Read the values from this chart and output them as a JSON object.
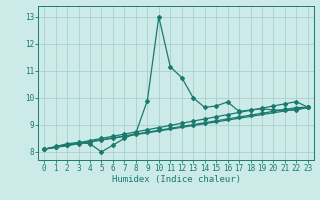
{
  "xlabel": "Humidex (Indice chaleur)",
  "bg_color": "#cceae8",
  "grid_color": "#aacfcc",
  "line_color": "#1a7a6e",
  "x_ticks": [
    0,
    1,
    2,
    3,
    4,
    5,
    6,
    7,
    8,
    9,
    10,
    11,
    12,
    13,
    14,
    15,
    16,
    17,
    18,
    19,
    20,
    21,
    22,
    23
  ],
  "y_ticks": [
    8,
    9,
    10,
    11,
    12,
    13
  ],
  "ylim": [
    7.7,
    13.4
  ],
  "xlim": [
    -0.5,
    23.5
  ],
  "series": [
    {
      "x": [
        0,
        1,
        2,
        3,
        4,
        5,
        6,
        7,
        8,
        9,
        10,
        11,
        12,
        13,
        14,
        15,
        16,
        17,
        18,
        19,
        20,
        21,
        22,
        23
      ],
      "y": [
        8.1,
        8.2,
        8.3,
        8.35,
        8.3,
        8.0,
        8.25,
        8.5,
        8.7,
        9.9,
        13.0,
        11.15,
        10.75,
        10.0,
        9.65,
        9.7,
        9.85,
        9.5,
        9.55,
        9.6,
        9.55,
        9.55,
        9.55,
        9.65
      ],
      "marker": "D",
      "markersize": 2.0,
      "linewidth": 0.9
    },
    {
      "x": [
        0,
        1,
        2,
        3,
        4,
        5,
        6,
        7,
        8,
        9,
        10,
        11,
        12,
        13,
        14,
        15,
        16,
        17,
        18,
        19,
        20,
        21,
        22,
        23
      ],
      "y": [
        8.1,
        8.18,
        8.26,
        8.34,
        8.42,
        8.5,
        8.58,
        8.66,
        8.74,
        8.82,
        8.9,
        8.98,
        9.06,
        9.14,
        9.22,
        9.3,
        9.38,
        9.46,
        9.54,
        9.62,
        9.7,
        9.78,
        9.86,
        9.65
      ],
      "marker": "D",
      "markersize": 2.0,
      "linewidth": 0.9
    },
    {
      "x": [
        0,
        23
      ],
      "y": [
        8.1,
        9.65
      ],
      "marker": null,
      "markersize": 0,
      "linewidth": 0.9
    },
    {
      "x": [
        0,
        1,
        2,
        3,
        4,
        5,
        6,
        7,
        8,
        9,
        10,
        11,
        12,
        13,
        14,
        15,
        16,
        17,
        18,
        19,
        20,
        21,
        22,
        23
      ],
      "y": [
        8.1,
        8.17,
        8.24,
        8.31,
        8.38,
        8.45,
        8.52,
        8.59,
        8.66,
        8.73,
        8.8,
        8.87,
        8.94,
        9.01,
        9.08,
        9.15,
        9.22,
        9.29,
        9.36,
        9.43,
        9.5,
        9.57,
        9.64,
        9.65
      ],
      "marker": "D",
      "markersize": 2.0,
      "linewidth": 0.9
    }
  ],
  "tick_fontsize": 5.5,
  "xlabel_fontsize": 6.5
}
